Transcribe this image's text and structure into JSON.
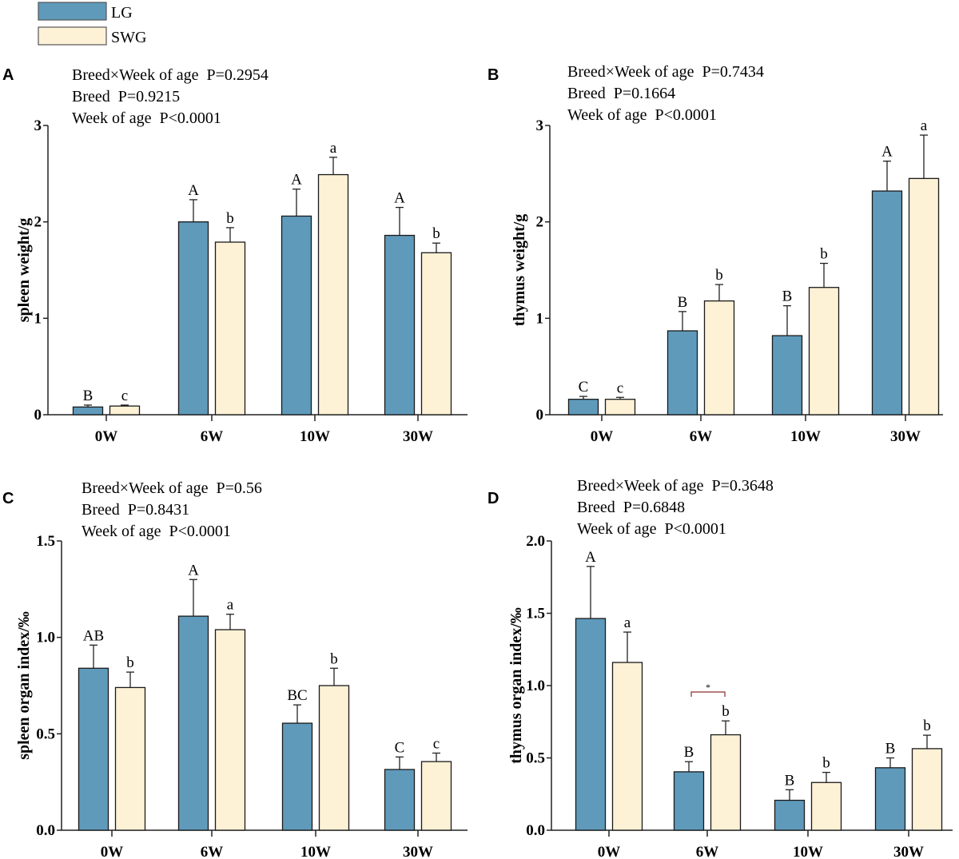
{
  "colors": {
    "LG": "#5f9abb",
    "SWG": "#fdf1d6",
    "outline": "#1a1a1a",
    "bracket": "#8b2c2c"
  },
  "legend": [
    {
      "name": "LG",
      "color": "#5f9abb"
    },
    {
      "name": "SWG",
      "color": "#fdf1d6"
    }
  ],
  "chart_data": [
    {
      "panel": "A",
      "type": "bar",
      "stats": [
        "Breed×Week of age  P=0.2954",
        "Breed  P=0.9215",
        "Week of age  P<0.0001"
      ],
      "ylabel": "spleen weight/g",
      "ylim": [
        0,
        3
      ],
      "yticks": [
        "0",
        "1",
        "2",
        "3"
      ],
      "ytick_values": [
        0,
        1,
        2,
        3
      ],
      "categories": [
        "0W",
        "6W",
        "10W",
        "30W"
      ],
      "series": [
        {
          "name": "LG",
          "values": [
            0.08,
            2.0,
            2.06,
            1.86
          ],
          "error": [
            0.02,
            0.23,
            0.28,
            0.29
          ],
          "letters": [
            "B",
            "A",
            "A",
            "A"
          ]
        },
        {
          "name": "SWG",
          "values": [
            0.09,
            1.79,
            2.49,
            1.68
          ],
          "error": [
            0.01,
            0.15,
            0.18,
            0.1
          ],
          "letters": [
            "c",
            "b",
            "a",
            "b"
          ]
        }
      ]
    },
    {
      "panel": "B",
      "type": "bar",
      "stats": [
        "Breed×Week of age  P=0.7434",
        "Breed  P=0.1664",
        "Week of age  P<0.0001"
      ],
      "ylabel": "thymus weight/g",
      "ylim": [
        0,
        3
      ],
      "yticks": [
        "0",
        "1",
        "2",
        "3"
      ],
      "ytick_values": [
        0,
        1,
        2,
        3
      ],
      "categories": [
        "0W",
        "6W",
        "10W",
        "30W"
      ],
      "series": [
        {
          "name": "LG",
          "values": [
            0.16,
            0.87,
            0.82,
            2.32
          ],
          "error": [
            0.03,
            0.2,
            0.31,
            0.31
          ],
          "letters": [
            "C",
            "B",
            "B",
            "A"
          ]
        },
        {
          "name": "SWG",
          "values": [
            0.16,
            1.18,
            1.32,
            2.45
          ],
          "error": [
            0.02,
            0.17,
            0.25,
            0.45
          ],
          "letters": [
            "c",
            "b",
            "b",
            "a"
          ]
        }
      ]
    },
    {
      "panel": "C",
      "type": "bar",
      "stats": [
        "Breed×Week of age  P=0.56",
        "Breed  P=0.8431",
        "Week of age  P<0.0001"
      ],
      "ylabel": "spleen organ index/‰",
      "ylim": [
        0,
        1.5
      ],
      "yticks": [
        "0.0",
        "0.5",
        "1.0",
        "1.5"
      ],
      "ytick_values": [
        0,
        0.5,
        1.0,
        1.5
      ],
      "categories": [
        "0W",
        "6W",
        "10W",
        "30W"
      ],
      "series": [
        {
          "name": "LG",
          "values": [
            0.84,
            1.11,
            0.555,
            0.315
          ],
          "error": [
            0.12,
            0.19,
            0.095,
            0.065
          ],
          "letters": [
            "AB",
            "A",
            "BC",
            "C"
          ]
        },
        {
          "name": "SWG",
          "values": [
            0.74,
            1.04,
            0.75,
            0.356
          ],
          "error": [
            0.08,
            0.08,
            0.09,
            0.044
          ],
          "letters": [
            "b",
            "a",
            "b",
            "c"
          ]
        }
      ]
    },
    {
      "panel": "D",
      "type": "bar",
      "stats": [
        "Breed×Week of age  P=0.3648",
        "Breed  P=0.6848",
        "Week of age  P<0.0001"
      ],
      "ylabel": "thymus organ index/‰",
      "ylim": [
        0,
        2.0
      ],
      "yticks": [
        "0.0",
        "0.5",
        "1.0",
        "1.5",
        "2.0"
      ],
      "ytick_values": [
        0,
        0.5,
        1.0,
        1.5,
        2.0
      ],
      "categories": [
        "0W",
        "6W",
        "10W",
        "30W"
      ],
      "series": [
        {
          "name": "LG",
          "values": [
            1.464,
            0.404,
            0.207,
            0.432
          ],
          "error": [
            0.36,
            0.07,
            0.073,
            0.068
          ],
          "letters": [
            "A",
            "B",
            "B",
            "B"
          ]
        },
        {
          "name": "SWG",
          "values": [
            1.16,
            0.66,
            0.33,
            0.564
          ],
          "error": [
            0.21,
            0.096,
            0.07,
            0.093
          ],
          "letters": [
            "a",
            "b",
            "b",
            "b"
          ]
        }
      ],
      "annotations": [
        {
          "category": "6W",
          "text": "*",
          "type": "significance-bracket"
        }
      ]
    }
  ]
}
